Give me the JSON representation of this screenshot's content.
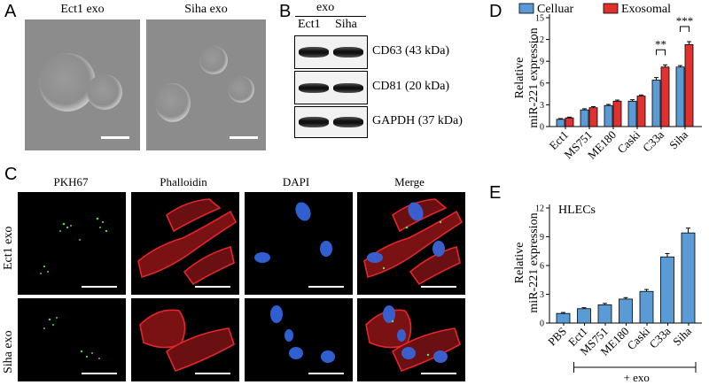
{
  "panel_letters": {
    "a": "A",
    "b": "B",
    "c": "C",
    "d": "D",
    "e": "E"
  },
  "panelA": {
    "left_caption": "Ect1 exo",
    "right_caption": "Siha exo"
  },
  "panelB": {
    "header": "exo",
    "lane1": "Ect1",
    "lane2": "Siha",
    "blots": [
      {
        "label": "CD63 (43 kDa)"
      },
      {
        "label": "CD81 (20 kDa)"
      },
      {
        "label": "GAPDH (37 kDa)"
      }
    ]
  },
  "panelC": {
    "channels": [
      "PKH67",
      "Phalloidin",
      "DAPI",
      "Merge"
    ],
    "rows": [
      "Ect1 exo",
      "Siha exo"
    ]
  },
  "chart_data": [
    {
      "type": "bar",
      "ylabel_line1": "Relative",
      "ylabel_line2": "miR-221  expression",
      "ylim": [
        0,
        15
      ],
      "yticks": [
        0,
        3,
        6,
        9,
        12,
        15
      ],
      "categories": [
        "Ect1",
        "MS751",
        "ME180",
        "Caski",
        "C33a",
        "Siha"
      ],
      "series": [
        {
          "name": "Celluar",
          "color": "#5b9bd5",
          "values": [
            1.0,
            2.3,
            2.9,
            3.5,
            6.4,
            8.2
          ],
          "errors": [
            0.1,
            0.15,
            0.15,
            0.2,
            0.35,
            0.2
          ]
        },
        {
          "name": "Exosomal",
          "color": "#e0312f",
          "values": [
            1.2,
            2.6,
            3.5,
            4.2,
            8.2,
            11.3
          ],
          "errors": [
            0.1,
            0.15,
            0.15,
            0.15,
            0.3,
            0.4
          ]
        }
      ],
      "significance": [
        {
          "category": "C33a",
          "label": "**"
        },
        {
          "category": "Siha",
          "label": "***"
        }
      ],
      "legend_position": "top"
    },
    {
      "type": "bar",
      "title": "HLECs",
      "ylabel_line1": "Relative",
      "ylabel_line2": "miR-221  expression",
      "ylim": [
        0,
        12
      ],
      "yticks": [
        0,
        3,
        6,
        9,
        12
      ],
      "categories": [
        "PBS",
        "Ect1",
        "MS751",
        "ME180",
        "Caski",
        "C33a",
        "Siha"
      ],
      "series": [
        {
          "name": "",
          "color": "#5b9bd5",
          "values": [
            1.0,
            1.5,
            1.9,
            2.5,
            3.3,
            6.9,
            9.4
          ],
          "errors": [
            0.1,
            0.1,
            0.15,
            0.15,
            0.2,
            0.35,
            0.5
          ]
        }
      ],
      "bracket_label": "+ exo"
    }
  ]
}
